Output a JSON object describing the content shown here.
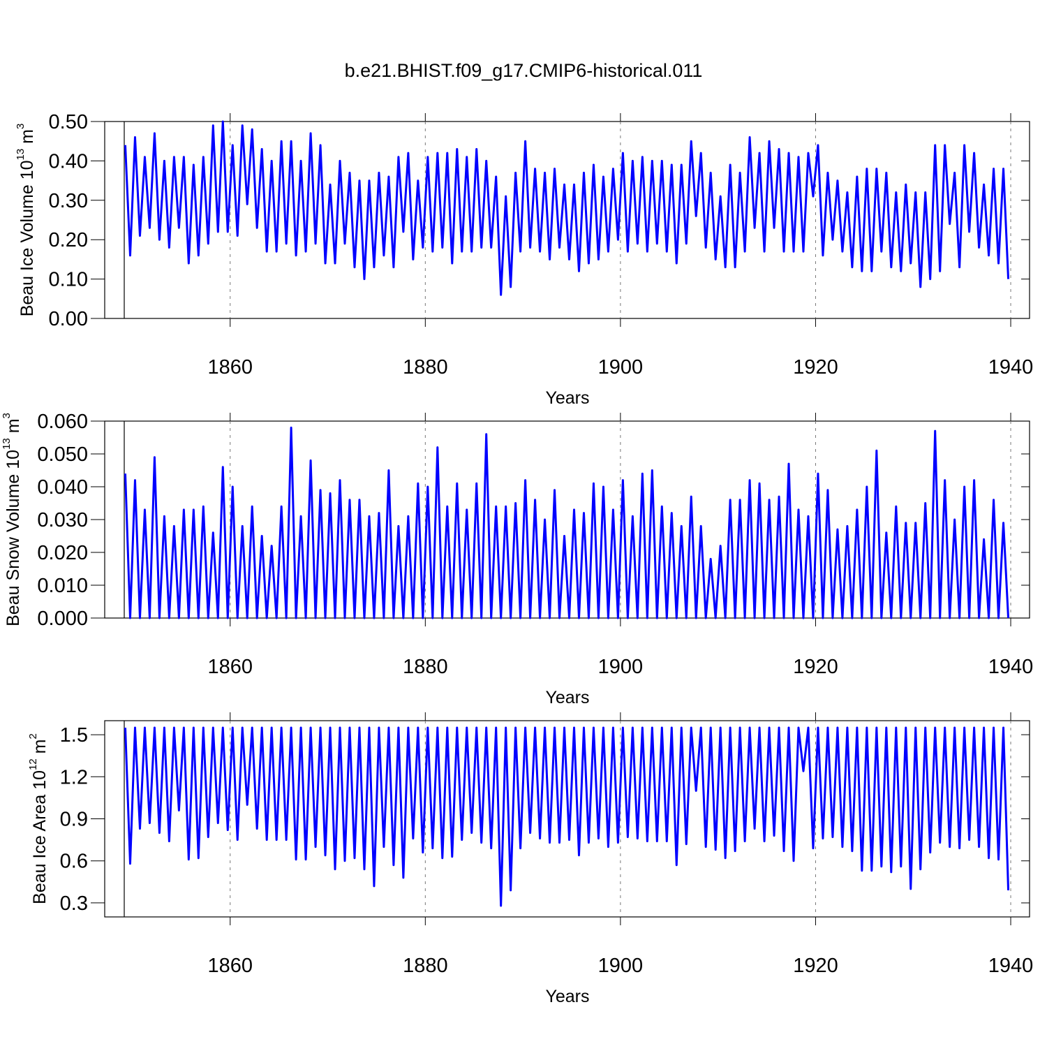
{
  "title": "b.e21.BHIST.f09_g17.CMIP6-historical.011",
  "chart_data": [
    {
      "type": "line",
      "xlabel": "Years",
      "ylabel": {
        "text": "Beau Ice Volume 10",
        "exponent": "13",
        "unit": " m",
        "unit_exponent": "3"
      },
      "xlim": [
        1847.14,
        1941.93
      ],
      "ylim": [
        0,
        0.5
      ],
      "xticks": [
        1860,
        1880,
        1900,
        1920,
        1940
      ],
      "yticks": [
        {
          "value": 0,
          "label": "0.00"
        },
        {
          "value": 0.1,
          "label": "0.10"
        },
        {
          "value": 0.2,
          "label": "0.20"
        },
        {
          "value": 0.3,
          "label": "0.30"
        },
        {
          "value": 0.4,
          "label": "0.40"
        },
        {
          "value": 0.5,
          "label": "0.50"
        }
      ],
      "grid": true,
      "color": "#0000ff",
      "x": [
        1849.25,
        1849.75,
        1850.25,
        1850.75,
        1851.25,
        1851.75,
        1852.25,
        1852.75,
        1853.25,
        1853.75,
        1854.25,
        1854.75,
        1855.25,
        1855.75,
        1856.25,
        1856.75,
        1857.25,
        1857.75,
        1858.25,
        1858.75,
        1859.25,
        1859.75,
        1860.25,
        1860.75,
        1861.25,
        1861.75,
        1862.25,
        1862.75,
        1863.25,
        1863.75,
        1864.25,
        1864.75,
        1865.25,
        1865.75,
        1866.25,
        1866.75,
        1867.25,
        1867.75,
        1868.25,
        1868.75,
        1869.25,
        1869.75,
        1870.25,
        1870.75,
        1871.25,
        1871.75,
        1872.25,
        1872.75,
        1873.25,
        1873.75,
        1874.25,
        1874.75,
        1875.25,
        1875.75,
        1876.25,
        1876.75,
        1877.25,
        1877.75,
        1878.25,
        1878.75,
        1879.25,
        1879.75,
        1880.25,
        1880.75,
        1881.25,
        1881.75,
        1882.25,
        1882.75,
        1883.25,
        1883.75,
        1884.25,
        1884.75,
        1885.25,
        1885.75,
        1886.25,
        1886.75,
        1887.25,
        1887.75,
        1888.25,
        1888.75,
        1889.25,
        1889.75,
        1890.25,
        1890.75,
        1891.25,
        1891.75,
        1892.25,
        1892.75,
        1893.25,
        1893.75,
        1894.25,
        1894.75,
        1895.25,
        1895.75,
        1896.25,
        1896.75,
        1897.25,
        1897.75,
        1898.25,
        1898.75,
        1899.25,
        1899.75,
        1900.25,
        1900.75,
        1901.25,
        1901.75,
        1902.25,
        1902.75,
        1903.25,
        1903.75,
        1904.25,
        1904.75,
        1905.25,
        1905.75,
        1906.25,
        1906.75,
        1907.25,
        1907.75,
        1908.25,
        1908.75,
        1909.25,
        1909.75,
        1910.25,
        1910.75,
        1911.25,
        1911.75,
        1912.25,
        1912.75,
        1913.25,
        1913.75,
        1914.25,
        1914.75,
        1915.25,
        1915.75,
        1916.25,
        1916.75,
        1917.25,
        1917.75,
        1918.25,
        1918.75,
        1919.25,
        1919.75,
        1920.25,
        1920.75,
        1921.25,
        1921.75,
        1922.25,
        1922.75,
        1923.25,
        1923.75,
        1924.25,
        1924.75,
        1925.25,
        1925.75,
        1926.25,
        1926.75,
        1927.25,
        1927.75,
        1928.25,
        1928.75,
        1929.25,
        1929.75,
        1930.25,
        1930.75,
        1931.25,
        1931.75,
        1932.25,
        1932.75,
        1933.25,
        1933.75,
        1934.25,
        1934.75,
        1935.25,
        1935.75,
        1936.25,
        1936.75,
        1937.25,
        1937.75,
        1938.25,
        1938.75,
        1939.25,
        1939.75
      ],
      "values": [
        0.44,
        0.16,
        0.46,
        0.21,
        0.41,
        0.23,
        0.47,
        0.2,
        0.4,
        0.18,
        0.41,
        0.23,
        0.41,
        0.14,
        0.39,
        0.16,
        0.41,
        0.19,
        0.49,
        0.22,
        0.5,
        0.22,
        0.44,
        0.21,
        0.49,
        0.29,
        0.48,
        0.23,
        0.43,
        0.17,
        0.4,
        0.17,
        0.45,
        0.19,
        0.45,
        0.16,
        0.4,
        0.17,
        0.47,
        0.19,
        0.44,
        0.14,
        0.34,
        0.14,
        0.4,
        0.19,
        0.37,
        0.13,
        0.35,
        0.1,
        0.35,
        0.13,
        0.37,
        0.16,
        0.36,
        0.13,
        0.41,
        0.22,
        0.42,
        0.15,
        0.35,
        0.18,
        0.41,
        0.17,
        0.42,
        0.18,
        0.42,
        0.14,
        0.43,
        0.17,
        0.41,
        0.17,
        0.43,
        0.18,
        0.4,
        0.18,
        0.36,
        0.06,
        0.31,
        0.08,
        0.37,
        0.17,
        0.45,
        0.18,
        0.38,
        0.17,
        0.37,
        0.15,
        0.38,
        0.18,
        0.34,
        0.15,
        0.34,
        0.12,
        0.37,
        0.14,
        0.39,
        0.15,
        0.36,
        0.17,
        0.38,
        0.2,
        0.42,
        0.17,
        0.4,
        0.19,
        0.41,
        0.17,
        0.4,
        0.19,
        0.4,
        0.17,
        0.39,
        0.14,
        0.39,
        0.19,
        0.45,
        0.26,
        0.42,
        0.18,
        0.37,
        0.15,
        0.31,
        0.13,
        0.39,
        0.13,
        0.37,
        0.17,
        0.46,
        0.23,
        0.42,
        0.17,
        0.45,
        0.23,
        0.43,
        0.17,
        0.42,
        0.17,
        0.41,
        0.17,
        0.42,
        0.31,
        0.44,
        0.16,
        0.37,
        0.2,
        0.35,
        0.17,
        0.32,
        0.13,
        0.36,
        0.12,
        0.38,
        0.12,
        0.38,
        0.17,
        0.37,
        0.13,
        0.32,
        0.12,
        0.34,
        0.14,
        0.32,
        0.08,
        0.32,
        0.1,
        0.44,
        0.12,
        0.44,
        0.24,
        0.37,
        0.13,
        0.44,
        0.22,
        0.42,
        0.18,
        0.34,
        0.16,
        0.38,
        0.14,
        0.38,
        0.1
      ]
    },
    {
      "type": "line",
      "xlabel": "Years",
      "ylabel": {
        "text": "Beau Snow Volume 10",
        "exponent": "13",
        "unit": " m",
        "unit_exponent": "3"
      },
      "xlim": [
        1847.14,
        1941.93
      ],
      "ylim": [
        0,
        0.06
      ],
      "xticks": [
        1860,
        1880,
        1900,
        1920,
        1940
      ],
      "yticks": [
        {
          "value": 0,
          "label": "0.000"
        },
        {
          "value": 0.01,
          "label": "0.010"
        },
        {
          "value": 0.02,
          "label": "0.020"
        },
        {
          "value": 0.03,
          "label": "0.030"
        },
        {
          "value": 0.04,
          "label": "0.040"
        },
        {
          "value": 0.05,
          "label": "0.050"
        },
        {
          "value": 0.06,
          "label": "0.060"
        }
      ],
      "grid": true,
      "color": "#0000ff",
      "x": [
        1849.25,
        1849.75,
        1850.25,
        1850.75,
        1851.25,
        1851.75,
        1852.25,
        1852.75,
        1853.25,
        1853.75,
        1854.25,
        1854.75,
        1855.25,
        1855.75,
        1856.25,
        1856.75,
        1857.25,
        1857.75,
        1858.25,
        1858.75,
        1859.25,
        1859.75,
        1860.25,
        1860.75,
        1861.25,
        1861.75,
        1862.25,
        1862.75,
        1863.25,
        1863.75,
        1864.25,
        1864.75,
        1865.25,
        1865.75,
        1866.25,
        1866.75,
        1867.25,
        1867.75,
        1868.25,
        1868.75,
        1869.25,
        1869.75,
        1870.25,
        1870.75,
        1871.25,
        1871.75,
        1872.25,
        1872.75,
        1873.25,
        1873.75,
        1874.25,
        1874.75,
        1875.25,
        1875.75,
        1876.25,
        1876.75,
        1877.25,
        1877.75,
        1878.25,
        1878.75,
        1879.25,
        1879.75,
        1880.25,
        1880.75,
        1881.25,
        1881.75,
        1882.25,
        1882.75,
        1883.25,
        1883.75,
        1884.25,
        1884.75,
        1885.25,
        1885.75,
        1886.25,
        1886.75,
        1887.25,
        1887.75,
        1888.25,
        1888.75,
        1889.25,
        1889.75,
        1890.25,
        1890.75,
        1891.25,
        1891.75,
        1892.25,
        1892.75,
        1893.25,
        1893.75,
        1894.25,
        1894.75,
        1895.25,
        1895.75,
        1896.25,
        1896.75,
        1897.25,
        1897.75,
        1898.25,
        1898.75,
        1899.25,
        1899.75,
        1900.25,
        1900.75,
        1901.25,
        1901.75,
        1902.25,
        1902.75,
        1903.25,
        1903.75,
        1904.25,
        1904.75,
        1905.25,
        1905.75,
        1906.25,
        1906.75,
        1907.25,
        1907.75,
        1908.25,
        1908.75,
        1909.25,
        1909.75,
        1910.25,
        1910.75,
        1911.25,
        1911.75,
        1912.25,
        1912.75,
        1913.25,
        1913.75,
        1914.25,
        1914.75,
        1915.25,
        1915.75,
        1916.25,
        1916.75,
        1917.25,
        1917.75,
        1918.25,
        1918.75,
        1919.25,
        1919.75,
        1920.25,
        1920.75,
        1921.25,
        1921.75,
        1922.25,
        1922.75,
        1923.25,
        1923.75,
        1924.25,
        1924.75,
        1925.25,
        1925.75,
        1926.25,
        1926.75,
        1927.25,
        1927.75,
        1928.25,
        1928.75,
        1929.25,
        1929.75,
        1930.25,
        1930.75,
        1931.25,
        1931.75,
        1932.25,
        1932.75,
        1933.25,
        1933.75,
        1934.25,
        1934.75,
        1935.25,
        1935.75,
        1936.25,
        1936.75,
        1937.25,
        1937.75,
        1938.25,
        1938.75,
        1939.25,
        1939.75
      ],
      "values": [
        0.044,
        0,
        0.042,
        0,
        0.033,
        0,
        0.049,
        0,
        0.031,
        0,
        0.028,
        0,
        0.033,
        0,
        0.033,
        0,
        0.034,
        0,
        0.026,
        0,
        0.046,
        0,
        0.04,
        0,
        0.028,
        0,
        0.034,
        0,
        0.025,
        0,
        0.022,
        0,
        0.034,
        0,
        0.058,
        0,
        0.031,
        0,
        0.048,
        0,
        0.039,
        0,
        0.038,
        0,
        0.042,
        0,
        0.036,
        0,
        0.036,
        0,
        0.031,
        0,
        0.032,
        0,
        0.045,
        0,
        0.028,
        0,
        0.031,
        0,
        0.041,
        0,
        0.04,
        0,
        0.052,
        0,
        0.034,
        0,
        0.041,
        0,
        0.033,
        0,
        0.041,
        0,
        0.056,
        0,
        0.034,
        0,
        0.034,
        0,
        0.035,
        0,
        0.042,
        0,
        0.036,
        0,
        0.03,
        0,
        0.039,
        0,
        0.025,
        0,
        0.033,
        0,
        0.032,
        0,
        0.041,
        0,
        0.04,
        0,
        0.033,
        0,
        0.042,
        0,
        0.031,
        0,
        0.044,
        0,
        0.045,
        0,
        0.034,
        0,
        0.032,
        0,
        0.028,
        0,
        0.037,
        0,
        0.028,
        0,
        0.018,
        0,
        0.022,
        0,
        0.036,
        0,
        0.036,
        0,
        0.042,
        0,
        0.041,
        0,
        0.036,
        0,
        0.037,
        0,
        0.047,
        0,
        0.033,
        0,
        0.031,
        0,
        0.044,
        0,
        0.039,
        0,
        0.027,
        0,
        0.028,
        0,
        0.033,
        0,
        0.04,
        0,
        0.051,
        0,
        0.026,
        0,
        0.034,
        0,
        0.029,
        0,
        0.029,
        0,
        0.035,
        0,
        0.057,
        0,
        0.042,
        0,
        0.03,
        0,
        0.04,
        0,
        0.042,
        0,
        0.024,
        0,
        0.036,
        0,
        0.029,
        0
      ]
    },
    {
      "type": "line",
      "xlabel": "Years",
      "ylabel": {
        "text": "Beau Ice Area 10",
        "exponent": "12",
        "unit": " m",
        "unit_exponent": "2"
      },
      "xlim": [
        1847.14,
        1941.93
      ],
      "ylim": [
        0.2,
        1.6
      ],
      "xticks": [
        1860,
        1880,
        1900,
        1920,
        1940
      ],
      "yticks": [
        0.3,
        0.6,
        0.9,
        1.2,
        1.5
      ],
      "grid": true,
      "color": "#0000ff",
      "x": [
        1849.25,
        1849.75,
        1850.25,
        1850.75,
        1851.25,
        1851.75,
        1852.25,
        1852.75,
        1853.25,
        1853.75,
        1854.25,
        1854.75,
        1855.25,
        1855.75,
        1856.25,
        1856.75,
        1857.25,
        1857.75,
        1858.25,
        1858.75,
        1859.25,
        1859.75,
        1860.25,
        1860.75,
        1861.25,
        1861.75,
        1862.25,
        1862.75,
        1863.25,
        1863.75,
        1864.25,
        1864.75,
        1865.25,
        1865.75,
        1866.25,
        1866.75,
        1867.25,
        1867.75,
        1868.25,
        1868.75,
        1869.25,
        1869.75,
        1870.25,
        1870.75,
        1871.25,
        1871.75,
        1872.25,
        1872.75,
        1873.25,
        1873.75,
        1874.25,
        1874.75,
        1875.25,
        1875.75,
        1876.25,
        1876.75,
        1877.25,
        1877.75,
        1878.25,
        1878.75,
        1879.25,
        1879.75,
        1880.25,
        1880.75,
        1881.25,
        1881.75,
        1882.25,
        1882.75,
        1883.25,
        1883.75,
        1884.25,
        1884.75,
        1885.25,
        1885.75,
        1886.25,
        1886.75,
        1887.25,
        1887.75,
        1888.25,
        1888.75,
        1889.25,
        1889.75,
        1890.25,
        1890.75,
        1891.25,
        1891.75,
        1892.25,
        1892.75,
        1893.25,
        1893.75,
        1894.25,
        1894.75,
        1895.25,
        1895.75,
        1896.25,
        1896.75,
        1897.25,
        1897.75,
        1898.25,
        1898.75,
        1899.25,
        1899.75,
        1900.25,
        1900.75,
        1901.25,
        1901.75,
        1902.25,
        1902.75,
        1903.25,
        1903.75,
        1904.25,
        1904.75,
        1905.25,
        1905.75,
        1906.25,
        1906.75,
        1907.25,
        1907.75,
        1908.25,
        1908.75,
        1909.25,
        1909.75,
        1910.25,
        1910.75,
        1911.25,
        1911.75,
        1912.25,
        1912.75,
        1913.25,
        1913.75,
        1914.25,
        1914.75,
        1915.25,
        1915.75,
        1916.25,
        1916.75,
        1917.25,
        1917.75,
        1918.25,
        1918.75,
        1919.25,
        1919.75,
        1920.25,
        1920.75,
        1921.25,
        1921.75,
        1922.25,
        1922.75,
        1923.25,
        1923.75,
        1924.25,
        1924.75,
        1925.25,
        1925.75,
        1926.25,
        1926.75,
        1927.25,
        1927.75,
        1928.25,
        1928.75,
        1929.25,
        1929.75,
        1930.25,
        1930.75,
        1931.25,
        1931.75,
        1932.25,
        1932.75,
        1933.25,
        1933.75,
        1934.25,
        1934.75,
        1935.25,
        1935.75,
        1936.25,
        1936.75,
        1937.25,
        1937.75,
        1938.25,
        1938.75,
        1939.25,
        1939.75
      ],
      "values": [
        1.55,
        0.58,
        1.55,
        0.83,
        1.55,
        0.87,
        1.55,
        0.8,
        1.55,
        0.74,
        1.55,
        0.96,
        1.55,
        0.61,
        1.55,
        0.62,
        1.55,
        0.77,
        1.55,
        0.87,
        1.55,
        0.82,
        1.55,
        0.75,
        1.55,
        1.0,
        1.55,
        0.83,
        1.55,
        0.75,
        1.55,
        0.75,
        1.55,
        0.75,
        1.55,
        0.61,
        1.55,
        0.61,
        1.55,
        0.7,
        1.55,
        0.64,
        1.55,
        0.54,
        1.55,
        0.6,
        1.55,
        0.62,
        1.55,
        0.54,
        1.55,
        0.42,
        1.55,
        0.7,
        1.55,
        0.57,
        1.55,
        0.48,
        1.55,
        0.76,
        1.55,
        0.66,
        1.55,
        0.69,
        1.55,
        0.62,
        1.55,
        0.63,
        1.55,
        0.75,
        1.55,
        0.8,
        1.55,
        0.73,
        1.55,
        0.69,
        1.55,
        0.28,
        1.55,
        0.39,
        1.55,
        0.69,
        1.55,
        0.8,
        1.55,
        0.76,
        1.55,
        0.73,
        1.55,
        0.73,
        1.55,
        0.75,
        1.55,
        0.64,
        1.55,
        0.73,
        1.55,
        0.76,
        1.55,
        0.7,
        1.55,
        0.73,
        1.55,
        0.77,
        1.55,
        0.76,
        1.55,
        0.74,
        1.55,
        0.74,
        1.55,
        0.74,
        1.55,
        0.57,
        1.55,
        0.72,
        1.55,
        1.1,
        1.55,
        0.7,
        1.55,
        0.68,
        1.55,
        0.62,
        1.55,
        0.67,
        1.55,
        0.74,
        1.55,
        0.83,
        1.55,
        0.74,
        1.55,
        0.78,
        1.55,
        0.67,
        1.55,
        0.6,
        1.55,
        1.24,
        1.55,
        0.69,
        1.55,
        0.76,
        1.55,
        0.77,
        1.55,
        0.7,
        1.55,
        0.67,
        1.55,
        0.53,
        1.55,
        0.53,
        1.55,
        0.56,
        1.55,
        0.52,
        1.55,
        0.56,
        1.55,
        0.4,
        1.55,
        0.54,
        1.55,
        0.66,
        1.55,
        0.73,
        1.55,
        0.7,
        1.55,
        0.69,
        1.55,
        0.75,
        1.55,
        0.7,
        1.55,
        0.62,
        1.55,
        0.61,
        1.55,
        0.39
      ]
    }
  ]
}
